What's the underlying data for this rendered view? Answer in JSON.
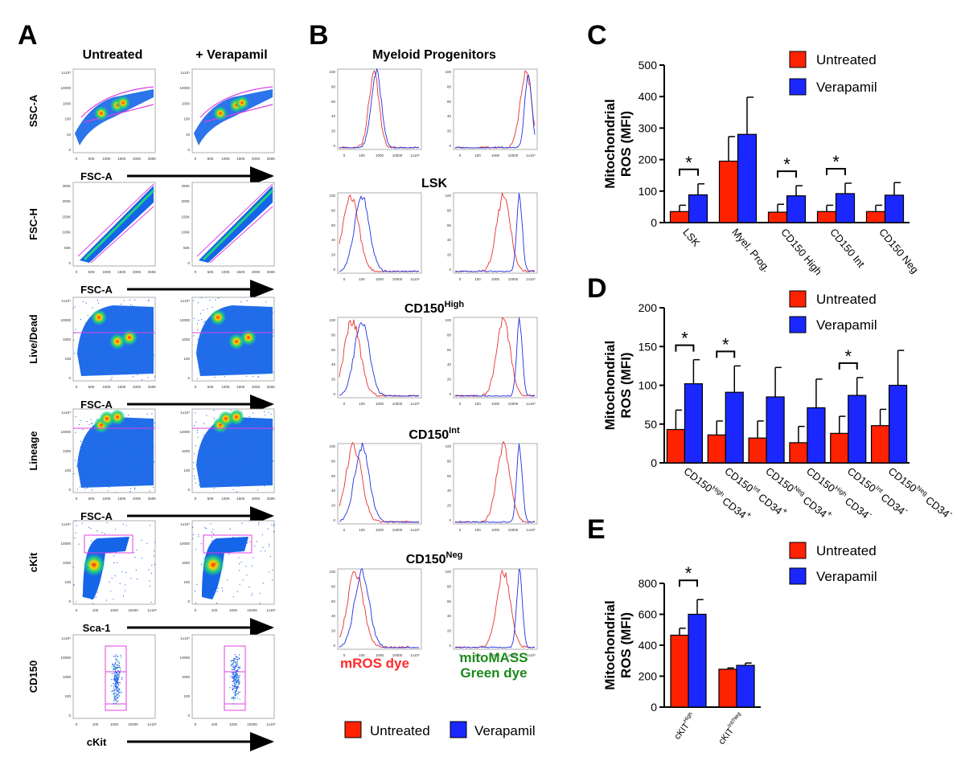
{
  "panels": {
    "A": {
      "letter": "A",
      "col_headers": [
        "Untreated",
        "+ Verapamil"
      ],
      "rows": [
        {
          "ylabel": "SSC-A",
          "xlabel": "FSC-A",
          "yticks": [
            "1x10⁵",
            "10000",
            "1000",
            "100",
            "10",
            "0"
          ],
          "xticks": [
            "0",
            "50K",
            "100K",
            "150K",
            "200K",
            "250K"
          ]
        },
        {
          "ylabel": "FSC-H",
          "xlabel": "FSC-A",
          "yticks": [
            "250K",
            "200K",
            "150K",
            "100K",
            "50K",
            "0"
          ],
          "xticks": [
            "0",
            "50K",
            "100K",
            "150K",
            "200K",
            "250K"
          ]
        },
        {
          "ylabel": "Live/Dead",
          "xlabel": "FSC-A",
          "yticks": [
            "1x10⁵",
            "10000",
            "1000",
            "100",
            "0"
          ],
          "xticks": [
            "0",
            "50K",
            "100K",
            "150K",
            "200K",
            "250K"
          ]
        },
        {
          "ylabel": "Lineage",
          "xlabel": "FSC-A",
          "yticks": [
            "1x10⁵",
            "10000",
            "1000",
            "100",
            "0"
          ],
          "xticks": [
            "0",
            "50K",
            "100K",
            "150K",
            "200K",
            "250K"
          ]
        },
        {
          "ylabel": "cKit",
          "xlabel": "Sca-1",
          "yticks": [
            "1x10⁵",
            "10000",
            "1000",
            "100",
            "0"
          ],
          "xticks": [
            "0",
            "100",
            "1000",
            "10000",
            "1x10⁵"
          ]
        },
        {
          "ylabel": "CD150",
          "xlabel": "cKit",
          "yticks": [
            "1x10⁵",
            "10000",
            "1000",
            "100",
            "0"
          ],
          "xticks": [
            "0",
            "100",
            "1000",
            "10000",
            "1x10⁵"
          ]
        }
      ]
    },
    "B": {
      "letter": "B",
      "titles": [
        "Myeloid Progenitors",
        "LSK",
        "CD150",
        "CD150",
        "CD150"
      ],
      "title_sups": [
        "",
        "",
        "High",
        "Int",
        "Neg"
      ],
      "hist_yticks": [
        "100",
        "80",
        "60",
        "40",
        "20",
        "0"
      ],
      "hist_xticks": [
        "0",
        "100",
        "1000",
        "10000",
        "1x10⁵"
      ],
      "dye_left": "mROS dye",
      "dye_right_line1": "mitoMASS",
      "dye_right_line2": "Green dye",
      "legend": [
        "Untreated",
        "Verapamil"
      ]
    },
    "C": {
      "letter": "C",
      "sig_star": "*",
      "legend": [
        "Untreated",
        "Verapamil"
      ]
    },
    "D": {
      "letter": "D",
      "sig_star": "*",
      "legend": [
        "Untreated",
        "Verapamil"
      ]
    },
    "E": {
      "letter": "E",
      "sig_star": "*",
      "legend": [
        "Untreated",
        "Verapamil"
      ]
    }
  },
  "colors": {
    "untreated": "#ff2200",
    "verapamil": "#1a28ff",
    "dye_left": "#ff2a2a",
    "dye_right": "#1a8a1a",
    "gate": "#e040e0"
  },
  "chart_data": [
    {
      "id": "C",
      "type": "bar",
      "ylabel": "Mitochondrial ROS (MFI)",
      "categories": [
        "LSK",
        "Myel. Prog.",
        "CD150 High",
        "CD150 Int",
        "CD150 Neg"
      ],
      "ylim": [
        0,
        500
      ],
      "yticks": [
        0,
        100,
        200,
        300,
        400,
        500
      ],
      "series": [
        {
          "name": "Untreated",
          "values": [
            35,
            195,
            33,
            35,
            35
          ],
          "errors": [
            20,
            78,
            25,
            20,
            20
          ]
        },
        {
          "name": "Verapamil",
          "values": [
            88,
            280,
            85,
            92,
            87
          ],
          "errors": [
            35,
            118,
            32,
            33,
            40
          ]
        }
      ],
      "significant": [
        0,
        2,
        3
      ]
    },
    {
      "id": "D",
      "type": "bar",
      "ylabel": "Mitochondrial ROS (MFI)",
      "categories": [
        "CD150 High CD34+",
        "CD150 Int CD34+",
        "CD150 Neg CD34+",
        "CD150 High CD34-",
        "CD150 Int CD34-",
        "CD150 Neg CD34-"
      ],
      "category_parts": [
        [
          "CD150",
          "High",
          " CD34",
          "+"
        ],
        [
          "CD150",
          "Int",
          " CD34",
          "+"
        ],
        [
          "CD150",
          "Neg",
          " CD34",
          "+"
        ],
        [
          "CD150",
          "High",
          " CD34",
          "-"
        ],
        [
          "CD150",
          "Int",
          " CD34",
          "-"
        ],
        [
          "CD150",
          "Neg",
          " CD34",
          "-"
        ]
      ],
      "ylim": [
        0,
        200
      ],
      "yticks": [
        0,
        50,
        100,
        150,
        200
      ],
      "series": [
        {
          "name": "Untreated",
          "values": [
            43,
            36,
            32,
            26,
            38,
            48
          ],
          "errors": [
            25,
            18,
            22,
            21,
            22,
            21
          ]
        },
        {
          "name": "Verapamil",
          "values": [
            102,
            91,
            85,
            71,
            87,
            100
          ],
          "errors": [
            31,
            34,
            38,
            37,
            23,
            45
          ]
        }
      ],
      "significant": [
        0,
        1,
        4
      ]
    },
    {
      "id": "E",
      "type": "bar",
      "ylabel": "Mitochondrial ROS (MFI)",
      "categories": [
        "cKIT High",
        "cKIT Int/Neg"
      ],
      "category_parts": [
        [
          "cKIT",
          "High"
        ],
        [
          "cKIT",
          "Int/Neg"
        ]
      ],
      "ylim": [
        0,
        800
      ],
      "yticks": [
        0,
        200,
        400,
        600,
        800
      ],
      "series": [
        {
          "name": "Untreated",
          "values": [
            465,
            245
          ],
          "errors": [
            45,
            8
          ]
        },
        {
          "name": "Verapamil",
          "values": [
            600,
            270
          ],
          "errors": [
            95,
            15
          ]
        }
      ],
      "significant": [
        0
      ]
    }
  ]
}
